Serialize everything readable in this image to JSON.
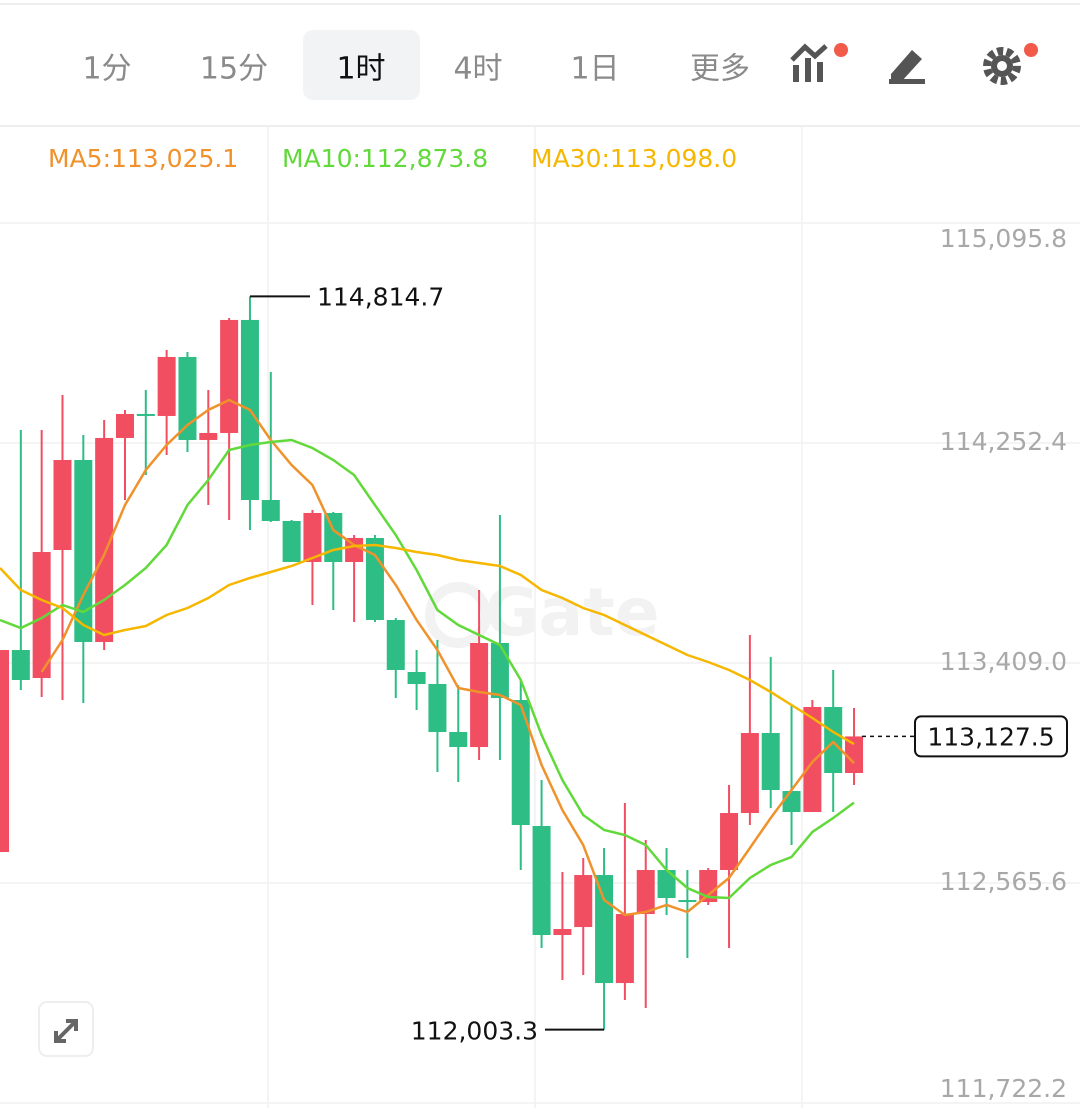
{
  "toolbar": {
    "tabs": [
      "1分",
      "15分",
      "1时",
      "4时",
      "1日",
      "更多"
    ],
    "active": 2
  },
  "chart_data": {
    "type": "candlestick",
    "up_color": "#f24e62",
    "down_color": "#2ebd85",
    "watermark": "Gate",
    "ylim": [
      111722.2,
      115095.8
    ],
    "yticks": [
      {
        "value": 115095.8,
        "label": "115,095.8"
      },
      {
        "value": 114252.4,
        "label": "114,252.4"
      },
      {
        "value": 113409.0,
        "label": "113,409.0"
      },
      {
        "value": 112565.6,
        "label": "112,565.6"
      },
      {
        "value": 111722.2,
        "label": "111,722.2"
      }
    ],
    "grid": true,
    "ohlc": [
      [
        112684.4,
        113458.8,
        112684.4,
        113458.8
      ],
      [
        113458.8,
        114302.3,
        113305.5,
        113343.8
      ],
      [
        113351.5,
        114302.3,
        113278.6,
        113834.6
      ],
      [
        113842.2,
        114436.5,
        113267.1,
        114187.3
      ],
      [
        114187.3,
        114283.2,
        113255.6,
        113489.5
      ],
      [
        113489.5,
        114340.7,
        113458.8,
        114271.7
      ],
      [
        114271.7,
        114379.0,
        114033.9,
        114363.7
      ],
      [
        114363.7,
        114455.7,
        114129.8,
        114356.0
      ],
      [
        114356.0,
        114609.0,
        114206.5,
        114582.2
      ],
      [
        114582.2,
        114601.4,
        114218.0,
        114264.0
      ],
      [
        114264.0,
        114455.7,
        114014.8,
        114290.8
      ],
      [
        114290.8,
        114731.7,
        113957.3,
        114724.1
      ],
      [
        114724.1,
        114814.7,
        113918.9,
        114033.9
      ],
      [
        114033.9,
        114524.7,
        113949.6,
        113953.4
      ],
      [
        113953.4,
        113957.3,
        113796.2,
        113796.2
      ],
      [
        113796.2,
        113995.6,
        113631.4,
        113984.1
      ],
      [
        113984.1,
        113987.9,
        113612.2,
        113796.2
      ],
      [
        113796.2,
        113899.8,
        113566.2,
        113888.3
      ],
      [
        113888.3,
        113899.8,
        113566.2,
        113573.9
      ],
      [
        113573.9,
        113581.5,
        113274.8,
        113382.2
      ],
      [
        113374.5,
        113458.8,
        113228.8,
        113328.5
      ],
      [
        113328.5,
        113497.2,
        112991.1,
        113144.5
      ],
      [
        113144.5,
        113324.7,
        112952.8,
        113086.9
      ],
      [
        113086.9,
        113688.9,
        113037.1,
        113485.7
      ],
      [
        113485.7,
        113976.4,
        113037.1,
        113274.8
      ],
      [
        113267.1,
        113343.8,
        112615.4,
        112787.9
      ],
      [
        112784.1,
        112960.4,
        112316.3,
        112366.2
      ],
      [
        112366.2,
        112607.7,
        112193.6,
        112389.2
      ],
      [
        112396.8,
        112661.4,
        112212.8,
        112596.2
      ],
      [
        112596.2,
        112699.7,
        112003.3,
        112182.1
      ],
      [
        112182.1,
        112872.2,
        112117.0,
        112446.7
      ],
      [
        112446.7,
        112730.4,
        112086.3,
        112615.4
      ],
      [
        112615.4,
        112699.7,
        112442.8,
        112508.0
      ],
      [
        112500.3,
        112615.4,
        112278.0,
        112492.7
      ],
      [
        112492.7,
        112623.0,
        112481.2,
        112615.4
      ],
      [
        112615.4,
        112941.3,
        112316.3,
        112833.9
      ],
      [
        112833.9,
        113516.4,
        112787.9,
        113140.6
      ],
      [
        113140.6,
        113432.0,
        112853.1,
        112922.1
      ],
      [
        112918.2,
        113248.0,
        112711.2,
        112837.7
      ],
      [
        112837.7,
        113267.1,
        112837.7,
        113240.3
      ],
      [
        113240.3,
        113382.2,
        112837.7,
        112987.3
      ],
      [
        112987.3,
        113236.5,
        112941.3,
        113127.5
      ]
    ],
    "series": [
      {
        "name": "MA5:113,025.1",
        "color": "#f0922c",
        "values": [
          null,
          null,
          113374.5,
          113497.2,
          113669.7,
          113823.1,
          114014.8,
          114149.0,
          114244.8,
          114321.5,
          114379.0,
          114417.3,
          114379.0,
          114264.0,
          114168.1,
          114091.5,
          113918.9,
          113861.4,
          113823.1,
          113708.1,
          113573.9,
          113458.8,
          113313.2,
          113297.8,
          113286.3,
          113248.0,
          113017.9,
          112845.4,
          112711.2,
          112500.3,
          112442.8,
          112454.3,
          112481.2,
          112454.3,
          112519.5,
          112584.7,
          112699.7,
          112814.7,
          112922.1,
          113029.4,
          113106.1,
          113025.1
        ]
      },
      {
        "name": "MA10:112,873.8",
        "color": "#62d93a",
        "values": [
          113573.9,
          113543.2,
          113581.5,
          113631.4,
          113604.5,
          113650.5,
          113708.1,
          113773.2,
          113861.4,
          114014.8,
          114110.6,
          114225.6,
          114244.8,
          114256.3,
          114264.0,
          114233.3,
          114187.3,
          114129.8,
          114014.8,
          113899.8,
          113765.6,
          113612.2,
          113554.7,
          113516.4,
          113478.0,
          113343.8,
          113133.0,
          112960.4,
          112826.2,
          112768.7,
          112749.6,
          112711.2,
          112615.4,
          112546.3,
          112511.8,
          112508.0,
          112584.7,
          112634.5,
          112665.2,
          112761.0,
          112814.7,
          112873.8
        ]
      },
      {
        "name": "MA30:113,098.0",
        "color": "#f5b700",
        "values": [
          113773.2,
          113688.9,
          113650.5,
          113619.9,
          113554.7,
          113516.4,
          113535.5,
          113550.9,
          113593.0,
          113619.9,
          113658.2,
          113708.1,
          113734.9,
          113757.9,
          113780.9,
          113811.6,
          113842.2,
          113857.6,
          113861.4,
          113849.9,
          113834.6,
          113823.1,
          113803.9,
          113792.4,
          113780.9,
          113746.4,
          113688.9,
          113658.2,
          113619.9,
          113593.0,
          113554.7,
          113516.4,
          113478.0,
          113439.7,
          113412.8,
          113382.2,
          113343.8,
          113297.8,
          113248.0,
          113198.1,
          113144.5,
          113098.0
        ]
      }
    ],
    "high_annotation": {
      "value": 114814.7,
      "label": "114,814.7"
    },
    "low_annotation": {
      "value": 112003.3,
      "label": "112,003.3"
    },
    "last_price": {
      "value": 113127.5,
      "label": "113,127.5"
    }
  }
}
